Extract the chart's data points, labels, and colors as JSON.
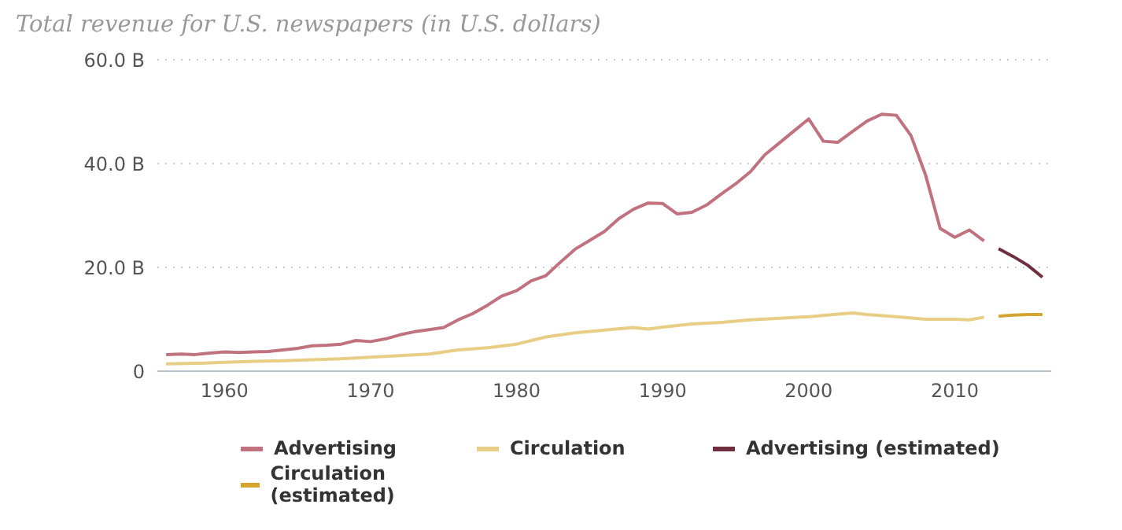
{
  "chart_data": {
    "type": "line",
    "title": "Total revenue for U.S. newspapers (in U.S. dollars)",
    "series": [
      {
        "name": "Advertising",
        "color": "#c0727f",
        "x": [
          1956,
          1957,
          1958,
          1959,
          1960,
          1961,
          1962,
          1963,
          1964,
          1965,
          1966,
          1967,
          1968,
          1969,
          1970,
          1971,
          1972,
          1973,
          1974,
          1975,
          1976,
          1977,
          1978,
          1979,
          1980,
          1981,
          1982,
          1983,
          1984,
          1985,
          1986,
          1987,
          1988,
          1989,
          1990,
          1991,
          1992,
          1993,
          1994,
          1995,
          1996,
          1997,
          1998,
          1999,
          2000,
          2001,
          2002,
          2003,
          2004,
          2005,
          2006,
          2007,
          2008,
          2009,
          2010,
          2011,
          2012
        ],
        "values": [
          3.2,
          3.3,
          3.2,
          3.5,
          3.7,
          3.6,
          3.7,
          3.8,
          4.1,
          4.4,
          4.9,
          5.0,
          5.2,
          5.9,
          5.7,
          6.2,
          7.0,
          7.6,
          8.0,
          8.4,
          9.9,
          11.1,
          12.7,
          14.5,
          15.5,
          17.4,
          18.4,
          21.0,
          23.5,
          25.2,
          26.9,
          29.4,
          31.2,
          32.4,
          32.3,
          30.3,
          30.6,
          32.0,
          34.1,
          36.1,
          38.4,
          41.7,
          44.0,
          46.3,
          48.6,
          44.3,
          44.1,
          46.2,
          48.2,
          49.5,
          49.3,
          45.4,
          37.8,
          27.5,
          25.8,
          27.2,
          25.1
        ]
      },
      {
        "name": "Circulation",
        "color": "#e8cd85",
        "x": [
          1956,
          1958,
          1960,
          1962,
          1964,
          1966,
          1968,
          1970,
          1972,
          1974,
          1976,
          1978,
          1980,
          1982,
          1984,
          1986,
          1988,
          1989,
          1990,
          1992,
          1994,
          1996,
          1998,
          2000,
          2002,
          2003,
          2004,
          2006,
          2008,
          2010,
          2011,
          2012
        ],
        "values": [
          1.4,
          1.5,
          1.7,
          1.9,
          2.0,
          2.2,
          2.4,
          2.7,
          3.0,
          3.3,
          4.1,
          4.5,
          5.2,
          6.6,
          7.4,
          7.9,
          8.4,
          8.1,
          8.5,
          9.1,
          9.4,
          9.9,
          10.2,
          10.5,
          11.0,
          11.2,
          10.9,
          10.5,
          10.0,
          10.0,
          9.9,
          10.4
        ]
      },
      {
        "name": "Advertising (estimated)",
        "color": "#6e2f3e",
        "x": [
          2013,
          2014,
          2015,
          2016
        ],
        "values": [
          23.6,
          22.1,
          20.4,
          18.1
        ]
      },
      {
        "name": "Circulation (estimated)",
        "color": "#d4a530",
        "x": [
          2013,
          2014,
          2015,
          2016
        ],
        "values": [
          10.6,
          10.8,
          10.9,
          10.9
        ]
      }
    ],
    "xlim": [
      1955.4,
      2016.6
    ],
    "xticks": [
      1960,
      1970,
      1980,
      1990,
      2000,
      2010
    ],
    "ylim": [
      0,
      60
    ],
    "yticks": [
      {
        "value": 0,
        "label": "0"
      },
      {
        "value": 20,
        "label": "20.0 B"
      },
      {
        "value": 40,
        "label": "40.0 B"
      },
      {
        "value": 60,
        "label": "60.0 B"
      }
    ],
    "grid": "y",
    "legend": "bottom",
    "marker": "none",
    "line_style": "solid"
  }
}
